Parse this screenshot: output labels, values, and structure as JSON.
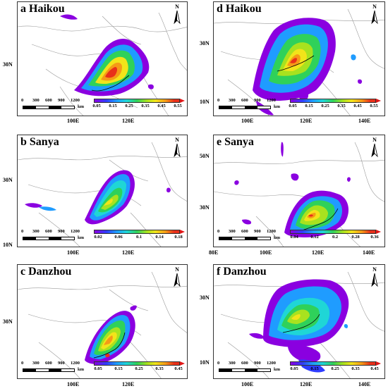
{
  "panels": [
    {
      "id": "a",
      "title": "a Haikou",
      "xticks": [
        "100E",
        "120E"
      ],
      "yticks": [
        "30N"
      ],
      "scale": {
        "labels": [
          "0",
          "300",
          "600",
          "900",
          "1200"
        ],
        "unit": "km"
      },
      "colorbar": {
        "ticks": [
          "0.05",
          "0.15",
          "0.25",
          "0.35",
          "0.45",
          "0.55"
        ]
      }
    },
    {
      "id": "d",
      "title": "d Haikou",
      "xticks": [
        "100E",
        "120E",
        "140E"
      ],
      "yticks": [
        "30N",
        "10N"
      ],
      "scale": {
        "labels": [
          "0",
          "300",
          "600",
          "900",
          "1200"
        ],
        "unit": "km"
      },
      "colorbar": {
        "ticks": [
          "0.05",
          "0.15",
          "0.25",
          "0.35",
          "0.45",
          "0.55"
        ]
      }
    },
    {
      "id": "b",
      "title": "b  Sanya",
      "xticks": [
        "100E",
        "120E"
      ],
      "yticks": [
        "30N",
        "10N"
      ],
      "scale": {
        "labels": [
          "0",
          "300",
          "600",
          "900",
          "1200"
        ],
        "unit": "km"
      },
      "colorbar": {
        "ticks": [
          "0.02",
          "0.06",
          "0.1",
          "0.14",
          "0.18"
        ]
      }
    },
    {
      "id": "e",
      "title": "e  Sanya",
      "xticks": [
        "80E",
        "100E",
        "120E",
        "140E"
      ],
      "yticks": [
        "50N",
        "30N"
      ],
      "scale": {
        "labels": [
          "0",
          "300",
          "600",
          "900",
          "1200"
        ],
        "unit": "km"
      },
      "colorbar": {
        "ticks": [
          "0.04",
          "0.12",
          "0.2",
          "0.28",
          "0.36"
        ]
      }
    },
    {
      "id": "c",
      "title": "c  Danzhou",
      "xticks": [
        "100E",
        "120E"
      ],
      "yticks": [
        "30N"
      ],
      "scale": {
        "labels": [
          "0",
          "300",
          "600",
          "900",
          "1200"
        ],
        "unit": "km"
      },
      "colorbar": {
        "ticks": [
          "0.05",
          "0.15",
          "0.25",
          "0.35",
          "0.45"
        ]
      }
    },
    {
      "id": "f",
      "title": "f  Danzhou",
      "xticks": [
        "100E",
        "120E",
        "140E"
      ],
      "yticks": [
        "30N",
        "10N"
      ],
      "scale": {
        "labels": [
          "0",
          "300",
          "600",
          "900",
          "1200"
        ],
        "unit": "km"
      },
      "colorbar": {
        "ticks": [
          "0.05",
          "0.15",
          "0.25",
          "0.35",
          "0.45"
        ]
      }
    }
  ],
  "north_label": "N",
  "colors": {
    "purple": "#8a00e0",
    "blue": "#2f3dff",
    "cyan": "#1fd6d6",
    "green": "#2fd15a",
    "yellow": "#f2e41a",
    "orange": "#f59a17",
    "red": "#e8301a"
  }
}
